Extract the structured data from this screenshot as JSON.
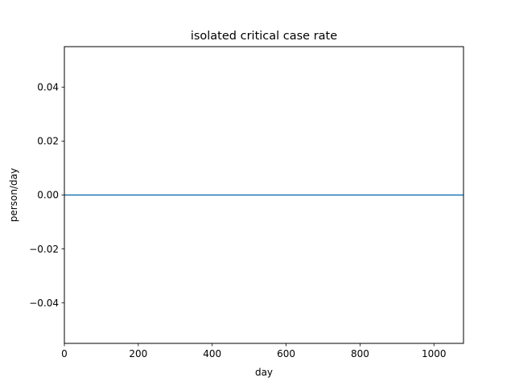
{
  "chart_data": {
    "type": "line",
    "title": "isolated critical case rate",
    "xlabel": "day",
    "ylabel": "person/day",
    "xlim": [
      0,
      1080
    ],
    "ylim": [
      -0.055,
      0.055
    ],
    "x_ticks": [
      0,
      200,
      400,
      600,
      800,
      1000
    ],
    "x_tick_labels": [
      "0",
      "200",
      "400",
      "600",
      "800",
      "1000"
    ],
    "y_ticks": [
      0.04,
      0.02,
      0.0,
      -0.02,
      -0.04
    ],
    "y_tick_labels": [
      "0.04",
      "0.02",
      "0.00",
      "−0.02",
      "−0.04"
    ],
    "grid": false,
    "series": [
      {
        "color": "#1f77b4",
        "x": [
          0,
          1080
        ],
        "y": [
          0,
          0
        ]
      }
    ]
  }
}
